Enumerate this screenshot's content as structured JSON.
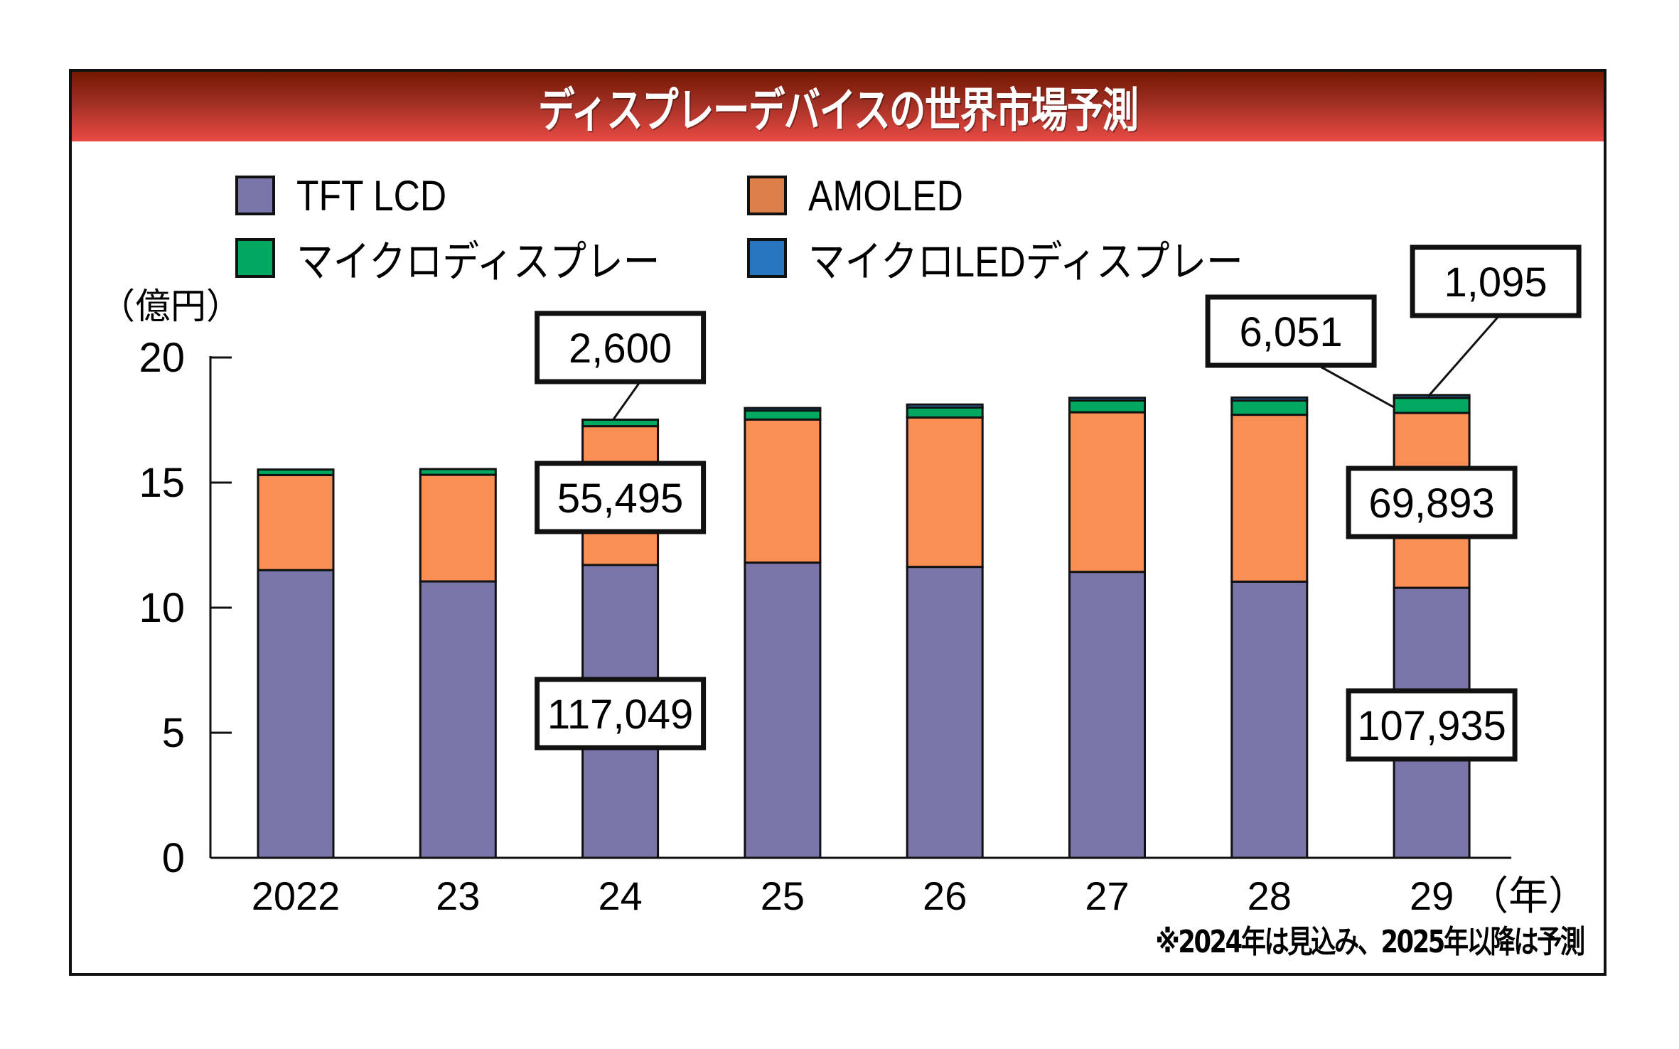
{
  "title": "ディスプレーデバイスの世界市場予測",
  "footnote": "※2024年は見込み、2025年以降は予測",
  "legend": [
    {
      "key": "tft_lcd",
      "label": "TFT LCD",
      "color": "#7b76aa"
    },
    {
      "key": "amoled",
      "label": "AMOLED",
      "color": "#dd7f48"
    },
    {
      "key": "micro_display",
      "label": "マイクロディスプレー",
      "color": "#00a860"
    },
    {
      "key": "micro_led",
      "label": "マイクロLEDディスプレー",
      "color": "#2776bf"
    }
  ],
  "chart_data": {
    "type": "bar",
    "stacked": true,
    "title": "ディスプレーデバイスの世界市場予測",
    "ylabel": "（億円）",
    "xlabel": "（年）",
    "ylim": [
      0,
      20
    ],
    "yticks": [
      0,
      5,
      10,
      15,
      20
    ],
    "ytick_labels": [
      "0",
      "5",
      "10",
      "15",
      "20"
    ],
    "categories": [
      "2022",
      "23",
      "24",
      "25",
      "26",
      "27",
      "28",
      "29"
    ],
    "grid": false,
    "legend_position": "top",
    "series": [
      {
        "name": "TFT LCD",
        "color": "#7b76aa",
        "values": [
          11.5,
          11.05,
          11.7049,
          11.8,
          11.63,
          11.43,
          11.04,
          10.7935
        ]
      },
      {
        "name": "AMOLED",
        "color": "#f98f55",
        "values": [
          3.8,
          4.26,
          5.5495,
          5.72,
          5.97,
          6.38,
          6.67,
          6.9893
        ]
      },
      {
        "name": "マイクロディスプレー",
        "color": "#00a860",
        "values": [
          0.22,
          0.23,
          0.26,
          0.36,
          0.4,
          0.47,
          0.57,
          0.6051
        ]
      },
      {
        "name": "マイクロLEDディスプレー",
        "color": "#2776bf",
        "values": [
          0,
          0,
          0,
          0.1,
          0.12,
          0.11,
          0.12,
          0.1095
        ]
      }
    ],
    "annotations": [
      {
        "category": "24",
        "series": "マイクロディスプレー",
        "text": "2,600",
        "value_oku_yen": 2600
      },
      {
        "category": "24",
        "series": "AMOLED",
        "text": "55,495",
        "value_oku_yen": 55495
      },
      {
        "category": "24",
        "series": "TFT LCD",
        "text": "117,049",
        "value_oku_yen": 117049
      },
      {
        "category": "29",
        "series": "マイクロLEDディスプレー",
        "text": "1,095",
        "value_oku_yen": 1095
      },
      {
        "category": "29",
        "series": "マイクロディスプレー",
        "text": "6,051",
        "value_oku_yen": 6051
      },
      {
        "category": "29",
        "series": "AMOLED",
        "text": "69,893",
        "value_oku_yen": 69893
      },
      {
        "category": "29",
        "series": "TFT LCD",
        "text": "107,935",
        "value_oku_yen": 107935
      }
    ]
  }
}
